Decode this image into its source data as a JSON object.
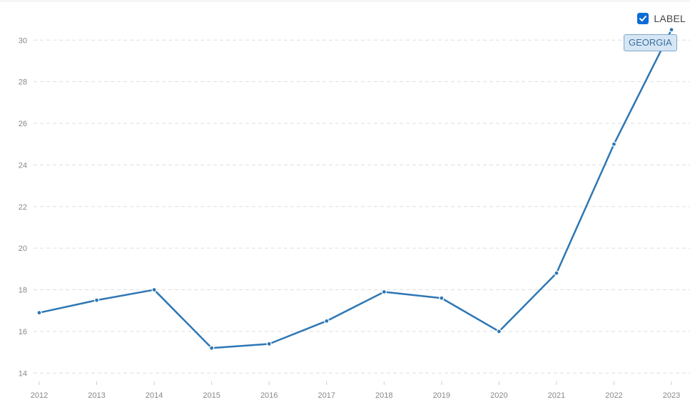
{
  "chart_data": {
    "type": "line",
    "x": [
      "2012",
      "2013",
      "2014",
      "2015",
      "2016",
      "2017",
      "2018",
      "2019",
      "2020",
      "2021",
      "2022",
      "2023"
    ],
    "series": [
      {
        "name": "GEORGIA",
        "values": [
          16.9,
          17.5,
          18.0,
          15.2,
          15.4,
          16.5,
          17.9,
          17.6,
          16.0,
          18.8,
          25.0,
          30.5
        ]
      }
    ],
    "yticks": [
      14,
      16,
      18,
      20,
      22,
      24,
      26,
      28,
      30
    ],
    "ylim": [
      13.6,
      30.9
    ],
    "grid": true,
    "legend_position": "top-right",
    "color": "#2e77b4"
  },
  "legend": {
    "label": "LABEL",
    "checked": true
  },
  "series_tag": "GEORGIA"
}
